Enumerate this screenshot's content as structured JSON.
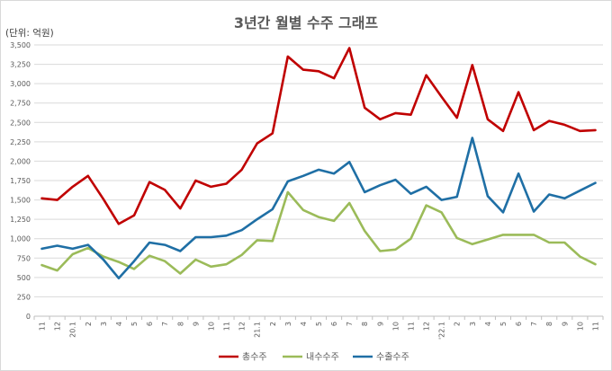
{
  "chart_data": {
    "type": "line",
    "title": "3년간 월별 수주 그래프",
    "unit_label": "(단위: 억원)",
    "categories": [
      "11",
      "12",
      "20.1",
      "2",
      "3",
      "4",
      "5",
      "6",
      "7",
      "8",
      "9",
      "10",
      "11",
      "12",
      "21.1",
      "2",
      "3",
      "4",
      "5",
      "6",
      "7",
      "8",
      "9",
      "10",
      "11",
      "12",
      "'22.1",
      "2",
      "3",
      "4",
      "5",
      "6",
      "7",
      "8",
      "9",
      "10",
      "11"
    ],
    "ylim": [
      0,
      3500
    ],
    "yticks": [
      "0",
      "250",
      "500",
      "750",
      "1,000",
      "1,250",
      "1,500",
      "1,750",
      "2,000",
      "2,250",
      "2,500",
      "2,750",
      "3,000",
      "3,250",
      "3,500"
    ],
    "ytick_values": [
      0,
      250,
      500,
      750,
      1000,
      1250,
      1500,
      1750,
      2000,
      2250,
      2500,
      2750,
      3000,
      3250,
      3500
    ],
    "grid": true,
    "legend_position": "bottom",
    "series": [
      {
        "name": "총수주",
        "color": "#c00000",
        "values": [
          1520,
          1500,
          1670,
          1810,
          1510,
          1190,
          1300,
          1730,
          1630,
          1390,
          1750,
          1670,
          1710,
          1890,
          2230,
          2360,
          3350,
          3180,
          3160,
          3070,
          3460,
          2690,
          2540,
          2620,
          2600,
          3110,
          2830,
          2560,
          3240,
          2540,
          2390,
          2890,
          2400,
          2520,
          2470,
          2390,
          2400
        ]
      },
      {
        "name": "내수수주",
        "color": "#9bbb59",
        "values": [
          660,
          590,
          800,
          880,
          770,
          700,
          610,
          780,
          710,
          550,
          730,
          640,
          670,
          790,
          980,
          970,
          1600,
          1370,
          1280,
          1230,
          1460,
          1100,
          840,
          860,
          1000,
          1430,
          1340,
          1010,
          930,
          990,
          1050,
          1050,
          1050,
          950,
          950,
          770,
          670
        ]
      },
      {
        "name": "수출수주",
        "color": "#1f6fa5",
        "values": [
          870,
          910,
          870,
          920,
          730,
          490,
          710,
          950,
          920,
          840,
          1020,
          1020,
          1040,
          1110,
          1250,
          1380,
          1740,
          1810,
          1890,
          1840,
          1990,
          1600,
          1690,
          1760,
          1580,
          1670,
          1500,
          1540,
          2300,
          1550,
          1340,
          1840,
          1350,
          1570,
          1520,
          1620,
          1720
        ]
      }
    ]
  }
}
